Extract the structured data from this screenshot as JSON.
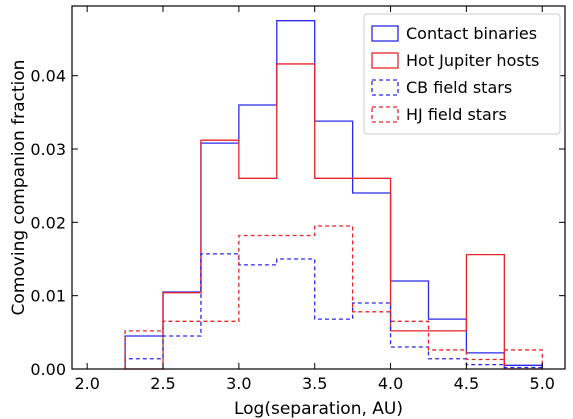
{
  "chart_data": {
    "type": "histogram",
    "xlabel": "Log(separation, AU)",
    "ylabel": "Comoving companion fraction",
    "xlim": [
      1.9,
      5.15
    ],
    "ylim": [
      0.0,
      0.0495
    ],
    "xticks": [
      "2.0",
      "2.5",
      "3.0",
      "3.5",
      "4.0",
      "4.5",
      "5.0"
    ],
    "yticks": [
      "0.00",
      "0.01",
      "0.02",
      "0.03",
      "0.04"
    ],
    "bin_edges": [
      2.25,
      2.5,
      2.75,
      3.0,
      3.25,
      3.5,
      3.75,
      4.0,
      4.25,
      4.5,
      4.75,
      5.0
    ],
    "legend_position": "top-right",
    "series": [
      {
        "name": "Contact binaries",
        "color": "#2a2ae8",
        "style": "solid",
        "values": [
          0.0045,
          0.0105,
          0.0308,
          0.036,
          0.0475,
          0.0338,
          0.024,
          0.012,
          0.0068,
          0.0022,
          0.0005
        ]
      },
      {
        "name": "Hot Jupiter hosts",
        "color": "#e8252a",
        "style": "solid",
        "values": [
          0.0,
          0.0104,
          0.0312,
          0.026,
          0.0416,
          0.026,
          0.026,
          0.0052,
          0.0052,
          0.0156,
          0.0
        ]
      },
      {
        "name": "CB field stars",
        "color": "#2a2ae8",
        "style": "dashed",
        "values": [
          0.0014,
          0.0045,
          0.0157,
          0.0142,
          0.015,
          0.0068,
          0.009,
          0.003,
          0.0014,
          0.0006,
          0.0002
        ]
      },
      {
        "name": "HJ field stars",
        "color": "#e8252a",
        "style": "dashed",
        "values": [
          0.0052,
          0.0065,
          0.0065,
          0.0182,
          0.0182,
          0.0195,
          0.0078,
          0.0065,
          0.0026,
          0.0013,
          0.0026
        ]
      }
    ]
  }
}
